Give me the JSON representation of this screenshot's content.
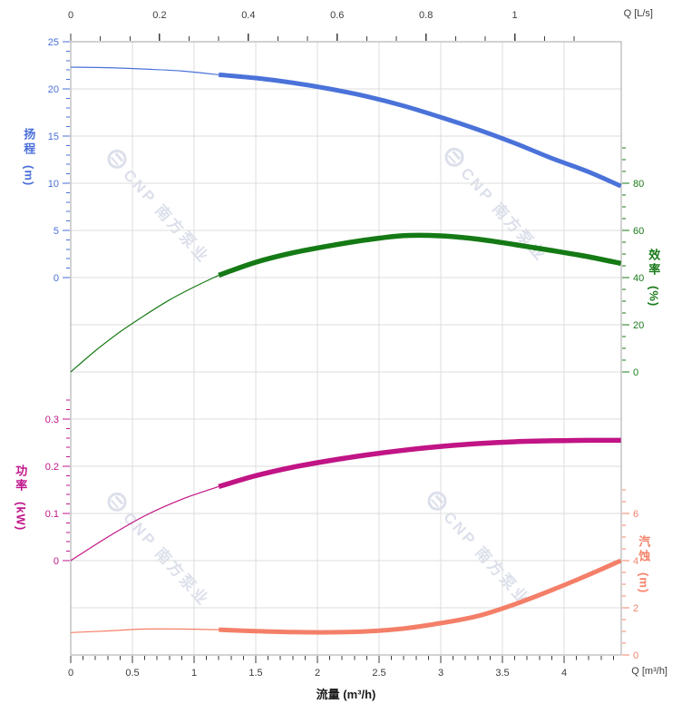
{
  "watermark": {
    "text": "CNP 南方泵业"
  },
  "chart_data": {
    "type": "line",
    "title": "",
    "grid": true,
    "legend": "none",
    "x_axis_bottom": {
      "label": "流量 (m³/h)",
      "unit_label": "Q [m³/h]",
      "ticks": [
        0,
        0.5,
        1,
        1.5,
        2,
        2.5,
        3,
        3.5,
        4
      ],
      "minor_step": 0.1,
      "min": 0,
      "max": 4.46,
      "color": "#3c3c3c"
    },
    "x_axis_top": {
      "unit_label": "Q [L/s]",
      "ticks": [
        0,
        0.2,
        0.4,
        0.6,
        0.8,
        1
      ],
      "minor_step": 0.06667,
      "min": 0,
      "max": 1.24,
      "color": "#3c3c3c"
    },
    "y_axes": [
      {
        "id": "head",
        "label": "扬程",
        "unit": "(m)",
        "side": "left",
        "color": "#4a6fd9",
        "ticks": [
          25,
          20,
          15,
          10,
          5,
          0
        ],
        "minor_step": 1,
        "min": 0,
        "max": 25
      },
      {
        "id": "efficiency",
        "label": "效率",
        "unit": "(%)",
        "side": "right",
        "color": "#1a7a1a",
        "ticks": [
          80,
          60,
          40,
          20,
          0
        ],
        "minor_step": 5,
        "min": 0,
        "max": 95
      },
      {
        "id": "power",
        "label": "功率",
        "unit": "(kW)",
        "side": "left",
        "color": "#c0168c",
        "ticks": [
          0.3,
          0.2,
          0.1,
          0
        ],
        "minor_step": 0.02,
        "min": 0,
        "max": 0.34
      },
      {
        "id": "npsh",
        "label": "汽蚀",
        "unit": "(m)",
        "side": "right",
        "color": "#f4836b",
        "ticks": [
          6,
          4,
          2,
          0
        ],
        "minor_step": 0.5,
        "min": 0,
        "max": 7
      }
    ],
    "rated_range_start_q": 1.2,
    "series": [
      {
        "name": "head-curve",
        "axis": "head",
        "color": "#4a72d9",
        "thick_from": 1.2,
        "points": [
          [
            0,
            22.3
          ],
          [
            0.3,
            22.25
          ],
          [
            0.6,
            22.1
          ],
          [
            0.9,
            21.9
          ],
          [
            1.2,
            21.5
          ],
          [
            1.5,
            21.15
          ],
          [
            1.8,
            20.65
          ],
          [
            2.1,
            20.0
          ],
          [
            2.4,
            19.2
          ],
          [
            2.7,
            18.2
          ],
          [
            3.0,
            17.0
          ],
          [
            3.3,
            15.7
          ],
          [
            3.6,
            14.25
          ],
          [
            3.9,
            12.65
          ],
          [
            4.2,
            11.2
          ],
          [
            4.46,
            9.7
          ]
        ]
      },
      {
        "name": "efficiency-curve",
        "axis": "efficiency",
        "color": "#157a15",
        "thick_from": 1.2,
        "points": [
          [
            0,
            0
          ],
          [
            0.2,
            9
          ],
          [
            0.4,
            17
          ],
          [
            0.6,
            24
          ],
          [
            0.8,
            30.5
          ],
          [
            1.0,
            36
          ],
          [
            1.2,
            41
          ],
          [
            1.5,
            46.5
          ],
          [
            1.8,
            50.5
          ],
          [
            2.1,
            53.5
          ],
          [
            2.4,
            56
          ],
          [
            2.7,
            57.8
          ],
          [
            3.0,
            57.7
          ],
          [
            3.3,
            56.3
          ],
          [
            3.6,
            54
          ],
          [
            3.9,
            51.5
          ],
          [
            4.2,
            48.8
          ],
          [
            4.46,
            46
          ]
        ]
      },
      {
        "name": "power-curve",
        "axis": "power",
        "color": "#c11485",
        "thick_from": 1.2,
        "points": [
          [
            0,
            0
          ],
          [
            0.3,
            0.05
          ],
          [
            0.6,
            0.095
          ],
          [
            0.9,
            0.13
          ],
          [
            1.2,
            0.157
          ],
          [
            1.5,
            0.18
          ],
          [
            1.8,
            0.198
          ],
          [
            2.1,
            0.212
          ],
          [
            2.4,
            0.224
          ],
          [
            2.7,
            0.234
          ],
          [
            3.0,
            0.242
          ],
          [
            3.3,
            0.248
          ],
          [
            3.6,
            0.252
          ],
          [
            3.9,
            0.254
          ],
          [
            4.2,
            0.255
          ],
          [
            4.46,
            0.255
          ]
        ]
      },
      {
        "name": "npsh-curve",
        "axis": "npsh",
        "color": "#f47f68",
        "thick_from": 1.2,
        "points": [
          [
            0,
            0.95
          ],
          [
            0.3,
            1.02
          ],
          [
            0.6,
            1.1
          ],
          [
            0.9,
            1.1
          ],
          [
            1.2,
            1.07
          ],
          [
            1.5,
            1.01
          ],
          [
            1.8,
            0.97
          ],
          [
            2.1,
            0.96
          ],
          [
            2.4,
            1.0
          ],
          [
            2.7,
            1.12
          ],
          [
            3.0,
            1.35
          ],
          [
            3.3,
            1.65
          ],
          [
            3.6,
            2.15
          ],
          [
            3.9,
            2.75
          ],
          [
            4.2,
            3.4
          ],
          [
            4.46,
            4.0
          ]
        ]
      }
    ]
  }
}
